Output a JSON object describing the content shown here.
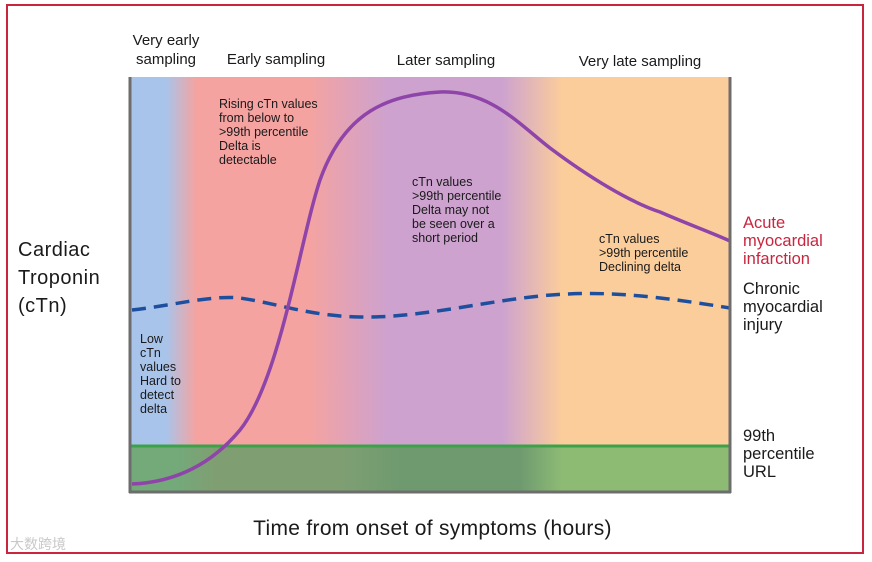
{
  "phases": {
    "very_early": "Very early\nsampling",
    "early": "Early sampling",
    "later": "Later sampling",
    "very_late": "Very late sampling"
  },
  "notes": {
    "low": "Low\ncTn\nvalues\nHard to\ndetect\ndelta",
    "rising": "Rising cTn values\nfrom below to\n>99th percentile\nDelta is\ndetectable",
    "above": "cTn values\n>99th percentile\nDelta may not\nbe seen over a\nshort period",
    "declining": "cTn values\n>99th percentile\nDeclining delta"
  },
  "y_axis_label": "Cardiac\nTroponin\n(cTn)",
  "x_axis_label": "Time from onset of symptoms (hours)",
  "curve_labels": {
    "ami": "Acute\nmyocardial\ninfarction",
    "chronic": "Chronic\nmyocardial\ninjury",
    "url": "99th\npercentile\nURL"
  },
  "colors": {
    "frame": "#c8253f",
    "ami_curve": "#8e44a8",
    "ami_label": "#c8253f",
    "chronic_curve": "#1e4f9e",
    "url_line": "#3ca24a",
    "zone_very_early": "#a9c4ea",
    "zone_early": "#f4a3a1",
    "zone_later": "#cda2cf",
    "zone_very_late": "#fbcd9b"
  },
  "watermark": "大数跨境"
}
